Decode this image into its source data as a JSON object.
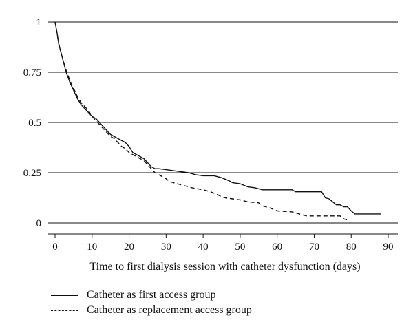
{
  "chart_data": {
    "type": "line",
    "title": "",
    "xlabel": "Time to first dialysis session with catheter dysfunction (days)",
    "ylabel": "",
    "xlim": [
      0,
      90
    ],
    "ylim": [
      0,
      1
    ],
    "x_ticks": [
      0,
      10,
      20,
      30,
      40,
      50,
      60,
      70,
      80,
      90
    ],
    "y_ticks": [
      0,
      0.25,
      0.5,
      0.75,
      1
    ],
    "y_tick_labels": [
      "0",
      "0.25",
      "0.5",
      "0.75",
      "1"
    ],
    "grid": "horizontal",
    "legend_placement": "bottom",
    "series": [
      {
        "name": "Catheter as first access group",
        "style": "solid",
        "color": "#111111",
        "points": [
          [
            0,
            1
          ],
          [
            0.5,
            0.95
          ],
          [
            1,
            0.89
          ],
          [
            2,
            0.82
          ],
          [
            3,
            0.75
          ],
          [
            4,
            0.7
          ],
          [
            5,
            0.66
          ],
          [
            6,
            0.62
          ],
          [
            7,
            0.59
          ],
          [
            8,
            0.57
          ],
          [
            9,
            0.55
          ],
          [
            10,
            0.53
          ],
          [
            11,
            0.52
          ],
          [
            12,
            0.5
          ],
          [
            13,
            0.48
          ],
          [
            14,
            0.46
          ],
          [
            15,
            0.44
          ],
          [
            16,
            0.43
          ],
          [
            17,
            0.42
          ],
          [
            18,
            0.41
          ],
          [
            19,
            0.4
          ],
          [
            20,
            0.38
          ],
          [
            21,
            0.35
          ],
          [
            22,
            0.34
          ],
          [
            23,
            0.33
          ],
          [
            24,
            0.32
          ],
          [
            25,
            0.3
          ],
          [
            26,
            0.28
          ],
          [
            27,
            0.27
          ],
          [
            28,
            0.27
          ],
          [
            30,
            0.265
          ],
          [
            32,
            0.26
          ],
          [
            34,
            0.255
          ],
          [
            36,
            0.25
          ],
          [
            38,
            0.24
          ],
          [
            40,
            0.235
          ],
          [
            43,
            0.235
          ],
          [
            45,
            0.225
          ],
          [
            47,
            0.21
          ],
          [
            48,
            0.2
          ],
          [
            50,
            0.195
          ],
          [
            52,
            0.18
          ],
          [
            54,
            0.175
          ],
          [
            56,
            0.165
          ],
          [
            60,
            0.165
          ],
          [
            64,
            0.165
          ],
          [
            65,
            0.155
          ],
          [
            72,
            0.155
          ],
          [
            73,
            0.125
          ],
          [
            74,
            0.12
          ],
          [
            75,
            0.105
          ],
          [
            76,
            0.09
          ],
          [
            77,
            0.09
          ],
          [
            78,
            0.08
          ],
          [
            79,
            0.08
          ],
          [
            80,
            0.06
          ],
          [
            81,
            0.045
          ],
          [
            88,
            0.045
          ]
        ]
      },
      {
        "name": "Catheter as replacement access group",
        "style": "dashed",
        "color": "#111111",
        "points": [
          [
            0,
            1
          ],
          [
            0.5,
            0.95
          ],
          [
            1,
            0.89
          ],
          [
            2,
            0.82
          ],
          [
            3,
            0.76
          ],
          [
            4,
            0.71
          ],
          [
            5,
            0.67
          ],
          [
            6,
            0.63
          ],
          [
            7,
            0.6
          ],
          [
            8,
            0.58
          ],
          [
            9,
            0.56
          ],
          [
            10,
            0.53
          ],
          [
            11,
            0.51
          ],
          [
            12,
            0.49
          ],
          [
            13,
            0.47
          ],
          [
            14,
            0.45
          ],
          [
            15,
            0.43
          ],
          [
            16,
            0.42
          ],
          [
            17,
            0.4
          ],
          [
            18,
            0.38
          ],
          [
            19,
            0.37
          ],
          [
            20,
            0.35
          ],
          [
            21,
            0.34
          ],
          [
            22,
            0.33
          ],
          [
            23,
            0.32
          ],
          [
            24,
            0.31
          ],
          [
            25,
            0.29
          ],
          [
            26,
            0.27
          ],
          [
            27,
            0.25
          ],
          [
            28,
            0.24
          ],
          [
            29,
            0.23
          ],
          [
            30,
            0.22
          ],
          [
            31,
            0.205
          ],
          [
            32,
            0.2
          ],
          [
            33,
            0.195
          ],
          [
            34,
            0.19
          ],
          [
            35,
            0.185
          ],
          [
            36,
            0.18
          ],
          [
            37,
            0.175
          ],
          [
            40,
            0.165
          ],
          [
            42,
            0.155
          ],
          [
            44,
            0.14
          ],
          [
            45,
            0.13
          ],
          [
            46,
            0.125
          ],
          [
            48,
            0.12
          ],
          [
            50,
            0.115
          ],
          [
            52,
            0.105
          ],
          [
            55,
            0.1
          ],
          [
            56,
            0.085
          ],
          [
            58,
            0.075
          ],
          [
            60,
            0.06
          ],
          [
            64,
            0.055
          ],
          [
            66,
            0.045
          ],
          [
            68,
            0.035
          ],
          [
            72,
            0.035
          ],
          [
            75,
            0.035
          ],
          [
            77,
            0.035
          ],
          [
            78,
            0.02
          ],
          [
            79,
            0.015
          ]
        ]
      }
    ]
  }
}
